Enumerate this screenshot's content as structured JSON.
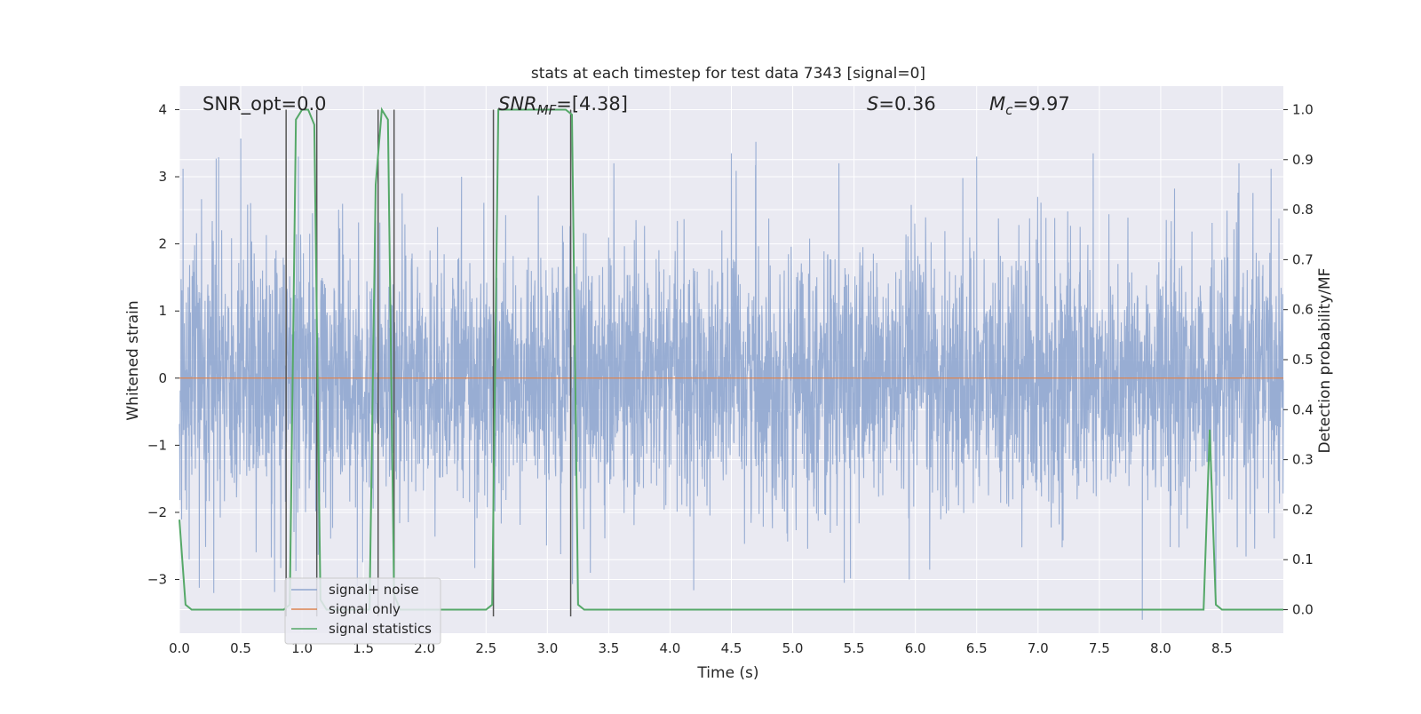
{
  "chart_data": {
    "type": "line",
    "title": "stats at each timestep for test data 7343 [signal=0]",
    "xlabel": "Time (s)",
    "ylabel_left": "Whitened strain",
    "ylabel_right": "Detection probability/MF",
    "xlim": [
      0.0,
      9.0
    ],
    "ylim_left": [
      -3.8,
      4.35
    ],
    "ylim_right": [
      -0.047,
      1.047
    ],
    "x_ticks": [
      "0.0",
      "0.5",
      "1.0",
      "1.5",
      "2.0",
      "2.5",
      "3.0",
      "3.5",
      "4.0",
      "4.5",
      "5.0",
      "5.5",
      "6.0",
      "6.5",
      "7.0",
      "7.5",
      "8.0",
      "8.5"
    ],
    "y_left_ticks": [
      "4",
      "3",
      "2",
      "1",
      "0",
      "−1",
      "−2",
      "−3"
    ],
    "y_right_ticks": [
      "1.0",
      "0.9",
      "0.8",
      "0.7",
      "0.6",
      "0.5",
      "0.4",
      "0.3",
      "0.2",
      "0.1",
      "0.0"
    ],
    "grid": true,
    "legend": {
      "placement": "lower-left",
      "entries": [
        "signal+ noise",
        "signal only",
        "signal statistics"
      ]
    },
    "annotations": {
      "snr_opt": "SNR_opt=0.0",
      "snr_mf_label": "SNR",
      "snr_mf_sub": "MF",
      "snr_mf_value": "=[4.38]",
      "s_label": "S",
      "s_value": "=0.36",
      "mc_label": "M",
      "mc_sub": "c",
      "mc_value": "=9.97"
    },
    "colors": {
      "background": "#eaeaf2",
      "grid": "#ffffff",
      "noise": "#8fa6cf",
      "signal": "#dd8452",
      "statistic": "#55a868",
      "marker": "#555555"
    },
    "series": [
      {
        "name": "signal+ noise",
        "description_values": "whitened strain noise, approx range -3.3 to 3.6",
        "sampled_spikes": [
          [
            0.03,
            3.12
          ],
          [
            0.08,
            -2.7
          ],
          [
            0.3,
            3.27
          ],
          [
            0.32,
            3.29
          ],
          [
            0.28,
            -3.2
          ],
          [
            0.5,
            3.57
          ],
          [
            0.97,
            3.3
          ],
          [
            1.45,
            -3.1
          ],
          [
            1.6,
            2.35
          ],
          [
            2.3,
            3.0
          ],
          [
            3.35,
            -2.9
          ],
          [
            4.7,
            3.52
          ],
          [
            4.5,
            3.35
          ],
          [
            5.42,
            -3.05
          ],
          [
            5.95,
            -3.0
          ],
          [
            6.5,
            3.3
          ],
          [
            7.45,
            3.35
          ],
          [
            7.85,
            -3.6
          ],
          [
            8.45,
            -3.3
          ],
          [
            8.9,
            3.12
          ]
        ]
      },
      {
        "name": "signal only",
        "x": [
          0.0,
          9.0
        ],
        "y": [
          0.0,
          0.0
        ]
      },
      {
        "name": "signal statistics",
        "axis": "right",
        "x": [
          0.0,
          0.05,
          0.1,
          0.85,
          0.9,
          0.95,
          1.0,
          1.05,
          1.1,
          1.15,
          1.2,
          1.55,
          1.6,
          1.65,
          1.7,
          1.75,
          1.8,
          2.5,
          2.55,
          2.6,
          2.65,
          3.15,
          3.2,
          3.25,
          3.3,
          8.3,
          8.35,
          8.4,
          8.45,
          8.5,
          8.55,
          9.0
        ],
        "y": [
          0.18,
          0.01,
          0.0,
          0.0,
          0.01,
          0.98,
          1.0,
          1.0,
          0.97,
          0.02,
          0.0,
          0.0,
          0.85,
          1.0,
          0.98,
          0.03,
          0.0,
          0.0,
          0.01,
          1.0,
          1.0,
          1.0,
          0.99,
          0.01,
          0.0,
          0.0,
          0.0,
          0.36,
          0.01,
          0.0,
          0.0,
          0.0
        ]
      }
    ],
    "marker_lines_x": [
      0.87,
      1.12,
      1.62,
      1.75,
      2.56,
      3.19
    ]
  }
}
